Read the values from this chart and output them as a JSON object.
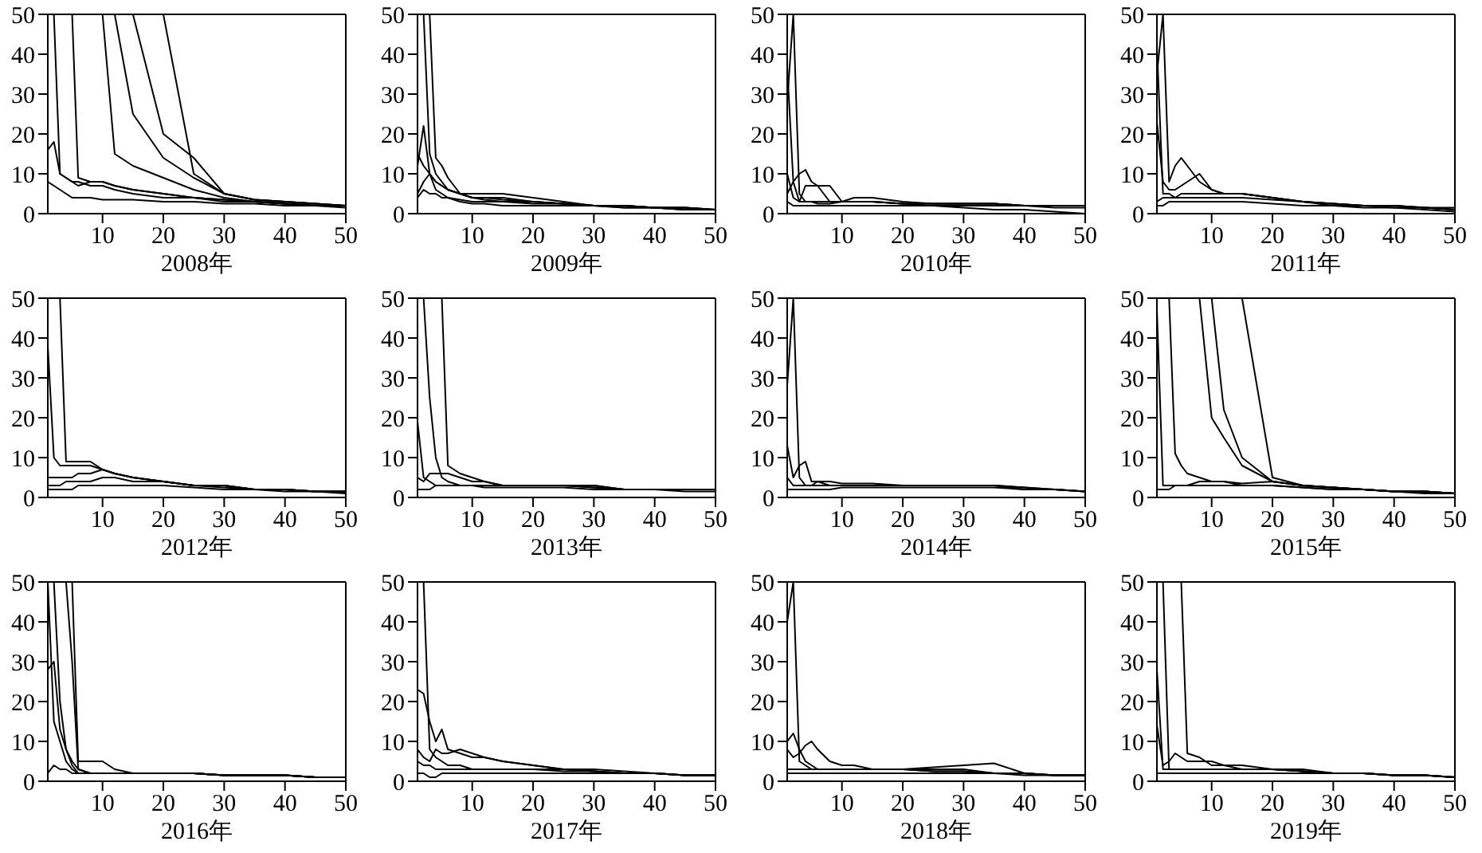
{
  "chart_data": [
    {
      "type": "line",
      "xlabel": "2008年",
      "x": [
        1,
        2,
        3,
        4,
        5,
        6,
        8,
        10,
        12,
        15,
        20,
        25,
        30,
        35,
        40,
        45,
        50
      ],
      "xlim": [
        1,
        50
      ],
      "xticks": [
        10,
        20,
        30,
        40,
        50
      ],
      "ylim": [
        0,
        50
      ],
      "yticks": [
        0,
        10,
        20,
        30,
        40,
        50
      ],
      "series": [
        {
          "color": "#000000",
          "values": [
            16,
            18,
            10,
            9,
            8,
            8,
            7,
            7,
            6,
            5,
            4,
            4,
            3,
            3,
            2.5,
            2,
            2
          ]
        },
        {
          "color": "#000000",
          "values": [
            null,
            50,
            10,
            9,
            8,
            7,
            8,
            8,
            7,
            6,
            5,
            4,
            3.5,
            3,
            2.5,
            2,
            2
          ]
        },
        {
          "color": "#000000",
          "values": [
            null,
            null,
            null,
            null,
            50,
            9,
            8,
            8,
            7,
            6,
            5,
            4,
            3.5,
            3,
            2.5,
            2,
            2
          ]
        },
        {
          "color": "#000000",
          "values": [
            null,
            null,
            null,
            null,
            null,
            null,
            null,
            50,
            15,
            12,
            9,
            6,
            4,
            3,
            2.5,
            2,
            2
          ]
        },
        {
          "color": "#000000",
          "values": [
            null,
            null,
            null,
            null,
            null,
            null,
            null,
            null,
            50,
            25,
            14,
            9,
            5,
            3.5,
            3,
            2.5,
            2
          ]
        },
        {
          "color": "#000000",
          "values": [
            null,
            null,
            null,
            null,
            null,
            null,
            null,
            null,
            null,
            50,
            20,
            14,
            5,
            3.5,
            3,
            2.5,
            2
          ]
        },
        {
          "color": "#000000",
          "values": [
            null,
            null,
            null,
            null,
            null,
            null,
            null,
            null,
            null,
            null,
            50,
            10,
            5,
            3.5,
            3,
            2.5,
            2
          ]
        },
        {
          "color": "#000000",
          "values": [
            8,
            7,
            6,
            5,
            4,
            4,
            4,
            3.5,
            3.5,
            3.5,
            3,
            3,
            2.5,
            2.5,
            2,
            2,
            1.5
          ]
        }
      ]
    },
    {
      "type": "line",
      "xlabel": "2009年",
      "x": [
        1,
        2,
        3,
        4,
        5,
        6,
        8,
        10,
        12,
        15,
        20,
        25,
        30,
        35,
        40,
        45,
        50
      ],
      "xlim": [
        1,
        50
      ],
      "xticks": [
        10,
        20,
        30,
        40,
        50
      ],
      "ylim": [
        0,
        50
      ],
      "yticks": [
        0,
        10,
        20,
        30,
        40,
        50
      ],
      "series": [
        {
          "color": "#000000",
          "values": [
            null,
            50,
            15,
            10,
            8,
            6,
            5,
            4,
            4,
            3.5,
            3,
            2.5,
            2,
            2,
            1.5,
            1.5,
            1
          ]
        },
        {
          "color": "#000000",
          "values": [
            null,
            null,
            50,
            14,
            12,
            9,
            5,
            4,
            4,
            4,
            3,
            2.5,
            2,
            2,
            1.5,
            1.5,
            1
          ]
        },
        {
          "color": "#000000",
          "values": [
            12,
            22,
            10,
            8,
            7,
            6,
            5,
            5,
            5,
            5,
            4,
            3,
            2,
            2,
            1.5,
            1.5,
            1
          ]
        },
        {
          "color": "#000000",
          "values": [
            5,
            8,
            10,
            8,
            7,
            6,
            5,
            4,
            3.5,
            3,
            3,
            2.5,
            2,
            2,
            1.5,
            1,
            1
          ]
        },
        {
          "color": "#000000",
          "values": [
            4,
            6,
            5,
            5,
            4,
            4,
            3.5,
            3,
            3,
            3,
            2.5,
            2.5,
            2,
            1.5,
            1.5,
            1,
            1
          ]
        },
        {
          "color": "#000000",
          "values": [
            15,
            12,
            10,
            6,
            5,
            4,
            3,
            2.5,
            2.5,
            2,
            2,
            2,
            2,
            1.5,
            1.5,
            1,
            1
          ]
        }
      ]
    },
    {
      "type": "line",
      "xlabel": "2010年",
      "x": [
        1,
        2,
        3,
        4,
        5,
        6,
        8,
        10,
        12,
        15,
        20,
        25,
        30,
        35,
        40,
        45,
        50
      ],
      "xlim": [
        1,
        50
      ],
      "xticks": [
        10,
        20,
        30,
        40,
        50
      ],
      "ylim": [
        0,
        50
      ],
      "yticks": [
        0,
        10,
        20,
        30,
        40,
        50
      ],
      "series": [
        {
          "color": "#000000",
          "values": [
            37,
            8,
            3,
            3,
            3,
            3,
            3,
            3,
            3,
            3,
            2.5,
            2.5,
            2.5,
            2.5,
            2,
            2,
            2
          ]
        },
        {
          "color": "#000000",
          "values": [
            28,
            50,
            5,
            3,
            3,
            2.5,
            2.5,
            3,
            3,
            3,
            2.5,
            2.5,
            2.5,
            2.5,
            2,
            2,
            2
          ]
        },
        {
          "color": "#000000",
          "values": [
            5,
            8,
            10,
            11,
            8,
            7,
            7,
            3,
            4,
            4,
            3,
            2.5,
            2.5,
            2.5,
            2,
            2,
            2
          ]
        },
        {
          "color": "#000000",
          "values": [
            10,
            4,
            3,
            7,
            7,
            7,
            3,
            3,
            3,
            3,
            2.5,
            2,
            2,
            2,
            2,
            1.5,
            1.5
          ]
        },
        {
          "color": "#000000",
          "values": [
            3,
            2,
            2,
            2,
            2,
            2,
            2,
            2,
            2,
            2,
            2,
            2,
            1.5,
            1,
            1,
            0.5,
            0
          ]
        }
      ]
    },
    {
      "type": "line",
      "xlabel": "2011年",
      "x": [
        1,
        2,
        3,
        4,
        5,
        6,
        8,
        10,
        12,
        15,
        20,
        25,
        30,
        35,
        40,
        45,
        50
      ],
      "xlim": [
        1,
        50
      ],
      "xticks": [
        10,
        20,
        30,
        40,
        50
      ],
      "ylim": [
        0,
        50
      ],
      "yticks": [
        0,
        10,
        20,
        30,
        40,
        50
      ],
      "series": [
        {
          "color": "#000000",
          "values": [
            42,
            5,
            5,
            4,
            4,
            4,
            4,
            4,
            4,
            4,
            3.5,
            3,
            2.5,
            2,
            2,
            1.5,
            1.5
          ]
        },
        {
          "color": "#000000",
          "values": [
            35,
            50,
            8,
            12,
            14,
            12,
            8,
            6,
            5,
            5,
            4,
            3,
            2.5,
            2,
            2,
            1.5,
            1
          ]
        },
        {
          "color": "#000000",
          "values": [
            23,
            8,
            6,
            6,
            7,
            8,
            10,
            6,
            5,
            5,
            4,
            3,
            2.5,
            2,
            2,
            1.5,
            1
          ]
        },
        {
          "color": "#000000",
          "values": [
            3,
            4,
            4,
            4,
            5,
            5,
            5,
            5,
            5,
            5,
            4,
            3,
            2,
            2,
            1.5,
            1.5,
            1
          ]
        },
        {
          "color": "#000000",
          "values": [
            2,
            2,
            3,
            3,
            3,
            3,
            3,
            3,
            3,
            3,
            2.5,
            2,
            2,
            1.5,
            1.5,
            1,
            0.5
          ]
        }
      ]
    },
    {
      "type": "line",
      "xlabel": "2012年",
      "x": [
        1,
        2,
        3,
        4,
        5,
        6,
        8,
        10,
        12,
        15,
        20,
        25,
        30,
        35,
        40,
        45,
        50
      ],
      "xlim": [
        1,
        50
      ],
      "xticks": [
        10,
        20,
        30,
        40,
        50
      ],
      "ylim": [
        0,
        50
      ],
      "yticks": [
        0,
        10,
        20,
        30,
        40,
        50
      ],
      "series": [
        {
          "color": "#000000",
          "values": [
            38,
            10,
            8,
            8,
            8,
            8,
            8,
            7,
            6,
            5,
            4,
            3,
            3,
            2,
            2,
            1.5,
            1.5
          ]
        },
        {
          "color": "#000000",
          "values": [
            null,
            null,
            50,
            9,
            9,
            9,
            9,
            7,
            6,
            5,
            4,
            3,
            3,
            2,
            2,
            1.5,
            1.5
          ]
        },
        {
          "color": "#000000",
          "values": [
            5,
            5,
            5,
            5,
            5,
            6,
            6,
            7,
            6,
            5,
            4,
            3,
            3,
            2,
            2,
            1.5,
            1.5
          ]
        },
        {
          "color": "#000000",
          "values": [
            3,
            3,
            3,
            4,
            4,
            4,
            4,
            5,
            5,
            4,
            4,
            3,
            2.5,
            2,
            2,
            1.5,
            1.5
          ]
        },
        {
          "color": "#000000",
          "values": [
            2,
            2,
            2,
            2,
            2,
            3,
            3,
            3,
            3,
            3,
            3,
            2.5,
            2,
            2,
            1.5,
            1.5,
            1
          ]
        }
      ]
    },
    {
      "type": "line",
      "xlabel": "2013年",
      "x": [
        1,
        2,
        3,
        4,
        5,
        6,
        8,
        10,
        12,
        15,
        20,
        25,
        30,
        35,
        40,
        45,
        50
      ],
      "xlim": [
        1,
        50
      ],
      "xticks": [
        10,
        20,
        30,
        40,
        50
      ],
      "ylim": [
        0,
        50
      ],
      "yticks": [
        0,
        10,
        20,
        30,
        40,
        50
      ],
      "series": [
        {
          "color": "#000000",
          "values": [
            19,
            5,
            4,
            3,
            3,
            3,
            3,
            3,
            3,
            3,
            3,
            3,
            2.5,
            2,
            2,
            2,
            2
          ]
        },
        {
          "color": "#000000",
          "values": [
            null,
            50,
            25,
            10,
            5,
            4,
            3,
            3,
            3,
            3,
            3,
            3,
            2.5,
            2,
            2,
            2,
            2
          ]
        },
        {
          "color": "#000000",
          "values": [
            null,
            null,
            null,
            null,
            50,
            8,
            6,
            5,
            4,
            3,
            3,
            3,
            3,
            2,
            2,
            2,
            2
          ]
        },
        {
          "color": "#000000",
          "values": [
            5,
            4,
            6,
            6,
            6,
            6,
            5,
            4,
            4,
            3,
            3,
            3,
            3,
            2,
            2,
            2,
            2
          ]
        },
        {
          "color": "#000000",
          "values": [
            2,
            2,
            2,
            3,
            3,
            3,
            3,
            3,
            2.5,
            2.5,
            2.5,
            2.5,
            2,
            2,
            2,
            1.5,
            1.5
          ]
        }
      ]
    },
    {
      "type": "line",
      "xlabel": "2014年",
      "x": [
        1,
        2,
        3,
        4,
        5,
        6,
        8,
        10,
        12,
        15,
        20,
        25,
        30,
        35,
        40,
        45,
        50
      ],
      "xlim": [
        1,
        50
      ],
      "xticks": [
        10,
        20,
        30,
        40,
        50
      ],
      "ylim": [
        0,
        50
      ],
      "yticks": [
        0,
        10,
        20,
        30,
        40,
        50
      ],
      "series": [
        {
          "color": "#000000",
          "values": [
            28,
            50,
            5,
            3,
            3,
            3,
            3,
            3,
            3,
            3,
            3,
            3,
            3,
            3,
            2,
            2,
            1.5
          ]
        },
        {
          "color": "#000000",
          "values": [
            13,
            5,
            8,
            9,
            4,
            4,
            3,
            3,
            3,
            3,
            3,
            3,
            3,
            3,
            2.5,
            2,
            1.5
          ]
        },
        {
          "color": "#000000",
          "values": [
            5,
            3,
            3,
            3,
            3,
            4,
            4,
            3.5,
            3.5,
            3.5,
            3,
            3,
            3,
            3,
            2.5,
            2,
            1.5
          ]
        },
        {
          "color": "#000000",
          "values": [
            2,
            2,
            2,
            2,
            2,
            2,
            2,
            2.5,
            2.5,
            2.5,
            2.5,
            2.5,
            2.5,
            2.5,
            2,
            2,
            1.5
          ]
        }
      ]
    },
    {
      "type": "line",
      "xlabel": "2015年",
      "x": [
        1,
        2,
        3,
        4,
        5,
        6,
        8,
        10,
        12,
        15,
        20,
        25,
        30,
        35,
        40,
        45,
        50
      ],
      "xlim": [
        1,
        50
      ],
      "xticks": [
        10,
        20,
        30,
        40,
        50
      ],
      "ylim": [
        0,
        50
      ],
      "yticks": [
        0,
        10,
        20,
        30,
        40,
        50
      ],
      "series": [
        {
          "color": "#000000",
          "values": [
            47,
            3,
            3,
            3,
            3,
            3,
            3,
            3,
            3,
            3,
            3,
            2.5,
            2,
            2,
            1.5,
            1.5,
            1
          ]
        },
        {
          "color": "#000000",
          "values": [
            null,
            null,
            50,
            11,
            8,
            6,
            5,
            4,
            4,
            3,
            3,
            2.5,
            2,
            2,
            1.5,
            1.5,
            1
          ]
        },
        {
          "color": "#000000",
          "values": [
            null,
            null,
            null,
            null,
            null,
            null,
            50,
            20,
            15,
            8,
            4,
            3,
            2.5,
            2,
            1.5,
            1.5,
            1
          ]
        },
        {
          "color": "#000000",
          "values": [
            null,
            null,
            null,
            null,
            null,
            null,
            null,
            50,
            22,
            10,
            4,
            3,
            2.5,
            2,
            1.5,
            1.5,
            1
          ]
        },
        {
          "color": "#000000",
          "values": [
            null,
            null,
            null,
            null,
            null,
            null,
            null,
            null,
            null,
            50,
            5,
            3,
            2.5,
            2,
            1.5,
            1.5,
            1
          ]
        },
        {
          "color": "#000000",
          "values": [
            2,
            2,
            2,
            3,
            3,
            3,
            4,
            4,
            4,
            3.5,
            4,
            3,
            2.5,
            2,
            1.5,
            1,
            1
          ]
        }
      ]
    },
    {
      "type": "line",
      "xlabel": "2016年",
      "x": [
        1,
        2,
        3,
        4,
        5,
        6,
        8,
        10,
        12,
        15,
        20,
        25,
        30,
        35,
        40,
        45,
        50
      ],
      "xlim": [
        1,
        50
      ],
      "xticks": [
        10,
        20,
        30,
        40,
        50
      ],
      "ylim": [
        0,
        50
      ],
      "yticks": [
        0,
        10,
        20,
        30,
        40,
        50
      ],
      "series": [
        {
          "color": "#000000",
          "values": [
            50,
            15,
            10,
            5,
            3,
            2,
            2,
            2,
            2,
            2,
            2,
            2,
            1.5,
            1.5,
            1.5,
            1,
            1
          ]
        },
        {
          "color": "#000000",
          "values": [
            null,
            50,
            20,
            8,
            4,
            2,
            2,
            2,
            2,
            2,
            2,
            2,
            1.5,
            1.5,
            1.5,
            1,
            1
          ]
        },
        {
          "color": "#000000",
          "values": [
            null,
            null,
            null,
            50,
            30,
            3,
            2,
            2,
            2,
            2,
            2,
            2,
            1.5,
            1.5,
            1.5,
            1,
            1
          ]
        },
        {
          "color": "#000000",
          "values": [
            null,
            null,
            null,
            null,
            50,
            5,
            5,
            5,
            3,
            2,
            2,
            2,
            1.5,
            1.5,
            1.5,
            1,
            1
          ]
        },
        {
          "color": "#000000",
          "values": [
            28,
            30,
            13,
            8,
            5,
            3,
            2,
            2,
            2,
            2,
            2,
            2,
            1.5,
            1.5,
            1.5,
            1,
            1
          ]
        },
        {
          "color": "#000000",
          "values": [
            2,
            4,
            3,
            3,
            2,
            2,
            2,
            2,
            2,
            2,
            2,
            2,
            1.5,
            1.5,
            1.5,
            1,
            1
          ]
        }
      ]
    },
    {
      "type": "line",
      "xlabel": "2017年",
      "x": [
        1,
        2,
        3,
        4,
        5,
        6,
        8,
        10,
        12,
        15,
        20,
        25,
        30,
        35,
        40,
        45,
        50
      ],
      "xlim": [
        1,
        50
      ],
      "xticks": [
        10,
        20,
        30,
        40,
        50
      ],
      "ylim": [
        0,
        50
      ],
      "yticks": [
        0,
        10,
        20,
        30,
        40,
        50
      ],
      "series": [
        {
          "color": "#000000",
          "values": [
            null,
            50,
            8,
            6,
            5,
            4,
            4,
            3,
            3,
            3,
            3,
            2.5,
            2.5,
            2,
            2,
            1.5,
            1.5
          ]
        },
        {
          "color": "#000000",
          "values": [
            23,
            22,
            15,
            10,
            13,
            8,
            7,
            6,
            6,
            5,
            4,
            3,
            3,
            2.5,
            2,
            1.5,
            1.5
          ]
        },
        {
          "color": "#000000",
          "values": [
            8,
            6,
            5,
            8,
            7,
            7,
            8,
            7,
            6,
            5,
            4,
            3,
            2.5,
            2,
            2,
            1.5,
            1.5
          ]
        },
        {
          "color": "#000000",
          "values": [
            5,
            4,
            4,
            3,
            3,
            3,
            3,
            3,
            3,
            3,
            3,
            3,
            2.5,
            2,
            2,
            1.5,
            1.5
          ]
        },
        {
          "color": "#000000",
          "values": [
            2,
            2,
            1,
            1,
            2,
            2,
            2,
            2,
            2,
            2,
            2,
            2,
            2,
            2,
            2,
            1.5,
            1.5
          ]
        }
      ]
    },
    {
      "type": "line",
      "xlabel": "2018年",
      "x": [
        1,
        2,
        3,
        4,
        5,
        6,
        8,
        10,
        12,
        15,
        20,
        25,
        30,
        35,
        40,
        45,
        50
      ],
      "xlim": [
        1,
        50
      ],
      "xticks": [
        10,
        20,
        30,
        40,
        50
      ],
      "ylim": [
        0,
        50
      ],
      "yticks": [
        0,
        10,
        20,
        30,
        40,
        50
      ],
      "series": [
        {
          "color": "#000000",
          "values": [
            40,
            50,
            5,
            4,
            3,
            3,
            3,
            3,
            3,
            3,
            3,
            3,
            3,
            2,
            2,
            1.5,
            1.5
          ]
        },
        {
          "color": "#000000",
          "values": [
            10,
            12,
            8,
            5,
            4,
            3,
            3,
            3,
            3,
            3,
            3,
            3.5,
            4,
            4.5,
            2,
            1.5,
            1.5
          ]
        },
        {
          "color": "#000000",
          "values": [
            8,
            6,
            7,
            9,
            10,
            8,
            5,
            4,
            4,
            3,
            3,
            2.5,
            2.5,
            2,
            2,
            1.5,
            1.5
          ]
        },
        {
          "color": "#000000",
          "values": [
            3,
            3,
            3,
            3,
            3,
            3,
            3,
            3,
            3,
            3,
            3,
            2.5,
            2.5,
            2,
            2,
            1.5,
            1.5
          ]
        },
        {
          "color": "#000000",
          "values": [
            2,
            2,
            2,
            2,
            2,
            2,
            2,
            2,
            2,
            2,
            2,
            2,
            2,
            2,
            1.5,
            1.5,
            1.5
          ]
        }
      ]
    },
    {
      "type": "line",
      "xlabel": "2019年",
      "x": [
        1,
        2,
        3,
        4,
        5,
        6,
        8,
        10,
        12,
        15,
        20,
        25,
        30,
        35,
        40,
        45,
        50
      ],
      "xlim": [
        1,
        50
      ],
      "xticks": [
        10,
        20,
        30,
        40,
        50
      ],
      "ylim": [
        0,
        50
      ],
      "yticks": [
        0,
        10,
        20,
        30,
        40,
        50
      ],
      "series": [
        {
          "color": "#000000",
          "values": [
            28,
            3,
            3,
            3,
            3,
            3,
            3,
            3,
            3,
            3,
            3,
            2.5,
            2,
            2,
            1.5,
            1.5,
            1
          ]
        },
        {
          "color": "#000000",
          "values": [
            null,
            50,
            3,
            3,
            3,
            3,
            3,
            3,
            3,
            3,
            3,
            2.5,
            2,
            2,
            1.5,
            1.5,
            1
          ]
        },
        {
          "color": "#000000",
          "values": [
            null,
            null,
            null,
            null,
            50,
            7,
            6,
            4,
            4,
            3,
            3,
            2.5,
            2,
            2,
            1.5,
            1.5,
            1
          ]
        },
        {
          "color": "#000000",
          "values": [
            14,
            4,
            5,
            7,
            6,
            5,
            5,
            5,
            4,
            4,
            3,
            3,
            2,
            2,
            1.5,
            1.5,
            1
          ]
        },
        {
          "color": "#000000",
          "values": [
            2,
            2,
            2,
            2,
            2,
            2,
            2,
            2,
            2,
            2,
            2,
            2,
            2,
            2,
            1.5,
            1.5,
            1
          ]
        }
      ]
    }
  ]
}
